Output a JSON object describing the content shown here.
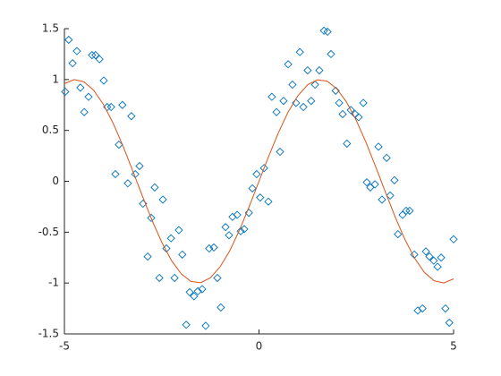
{
  "chart_data": {
    "type": "scatter",
    "xlim": [
      -5,
      5
    ],
    "xticks": [
      -5,
      0,
      5
    ],
    "ylim": [
      -1.5,
      1.5
    ],
    "yticks": [
      -1.5,
      -1,
      -0.5,
      0,
      0.5,
      1,
      1.5
    ],
    "series": [
      {
        "type": "scatter",
        "color": "#0072bd",
        "x": [
          -4.98,
          -4.89,
          -4.79,
          -4.68,
          -4.59,
          -4.49,
          -4.38,
          -4.29,
          -4.2,
          -4.1,
          -3.99,
          -3.9,
          -3.8,
          -3.69,
          -3.6,
          -3.51,
          -3.37,
          -3.28,
          -3.18,
          -3.07,
          -2.98,
          -2.86,
          -2.77,
          -2.68,
          -2.56,
          -2.47,
          -2.38,
          -2.26,
          -2.17,
          -2.06,
          -1.97,
          -1.87,
          -1.78,
          -1.67,
          -1.57,
          -1.46,
          -1.37,
          -1.28,
          -1.16,
          -1.07,
          -0.98,
          -0.86,
          -0.77,
          -0.68,
          -0.56,
          -0.47,
          -0.38,
          -0.26,
          -0.17,
          -0.06,
          0.03,
          0.13,
          0.24,
          0.33,
          0.45,
          0.54,
          0.63,
          0.75,
          0.86,
          0.95,
          1.05,
          1.14,
          1.25,
          1.34,
          1.44,
          1.55,
          1.67,
          1.76,
          1.85,
          1.97,
          2.06,
          2.15,
          2.26,
          2.36,
          2.47,
          2.56,
          2.68,
          2.77,
          2.86,
          2.98,
          3.07,
          3.16,
          3.28,
          3.37,
          3.48,
          3.57,
          3.69,
          3.78,
          3.87,
          3.99,
          4.08,
          4.2,
          4.29,
          4.38,
          4.49,
          4.59,
          4.68,
          4.79,
          4.89,
          5.0
        ],
        "y": [
          0.88,
          1.39,
          1.16,
          1.28,
          0.92,
          0.68,
          0.83,
          1.24,
          1.24,
          1.2,
          0.99,
          0.73,
          0.73,
          0.07,
          0.36,
          0.75,
          -0.02,
          0.64,
          0.07,
          0.15,
          -0.22,
          -0.74,
          -0.36,
          -0.06,
          -0.95,
          -0.18,
          -0.66,
          -0.56,
          -0.95,
          -0.48,
          -0.72,
          -1.41,
          -1.09,
          -1.13,
          -1.08,
          -1.06,
          -1.42,
          -0.66,
          -0.65,
          -0.95,
          -1.24,
          -0.45,
          -0.53,
          -0.35,
          -0.33,
          -0.49,
          -0.47,
          -0.31,
          -0.07,
          0.07,
          -0.16,
          0.13,
          -0.2,
          0.83,
          0.68,
          0.29,
          0.79,
          1.15,
          0.95,
          0.77,
          1.27,
          0.73,
          1.09,
          0.79,
          0.95,
          1.09,
          1.48,
          1.47,
          1.25,
          0.89,
          0.77,
          0.66,
          0.37,
          0.7,
          0.66,
          0.63,
          0.77,
          -0.01,
          -0.06,
          -0.03,
          0.34,
          -0.18,
          0.23,
          -0.14,
          0.01,
          -0.52,
          -0.33,
          -0.29,
          -0.29,
          -0.72,
          -1.27,
          -1.25,
          -0.69,
          -0.74,
          -0.78,
          -0.84,
          -0.75,
          -1.25,
          -1.39,
          -0.57
        ]
      },
      {
        "type": "line",
        "color": "#d95319",
        "x": [
          -5,
          -4.75,
          -4.5,
          -4.25,
          -4,
          -3.75,
          -3.5,
          -3.25,
          -3,
          -2.75,
          -2.5,
          -2.25,
          -2,
          -1.75,
          -1.5,
          -1.25,
          -1,
          -0.75,
          -0.5,
          -0.25,
          0,
          0.25,
          0.5,
          0.75,
          1,
          1.25,
          1.5,
          1.75,
          2,
          2.25,
          2.5,
          2.75,
          3,
          3.25,
          3.5,
          3.75,
          4,
          4.25,
          4.5,
          4.75,
          5
        ],
        "y": [
          0.959,
          0.999,
          0.978,
          0.895,
          0.757,
          0.572,
          0.351,
          0.108,
          -0.141,
          -0.382,
          -0.598,
          -0.778,
          -0.909,
          -0.984,
          -0.997,
          -0.949,
          -0.841,
          -0.682,
          -0.479,
          -0.247,
          0,
          0.247,
          0.479,
          0.682,
          0.841,
          0.949,
          0.997,
          0.984,
          0.909,
          0.778,
          0.598,
          0.382,
          0.141,
          -0.108,
          -0.351,
          -0.572,
          -0.757,
          -0.895,
          -0.978,
          -0.999,
          -0.959
        ]
      }
    ]
  }
}
